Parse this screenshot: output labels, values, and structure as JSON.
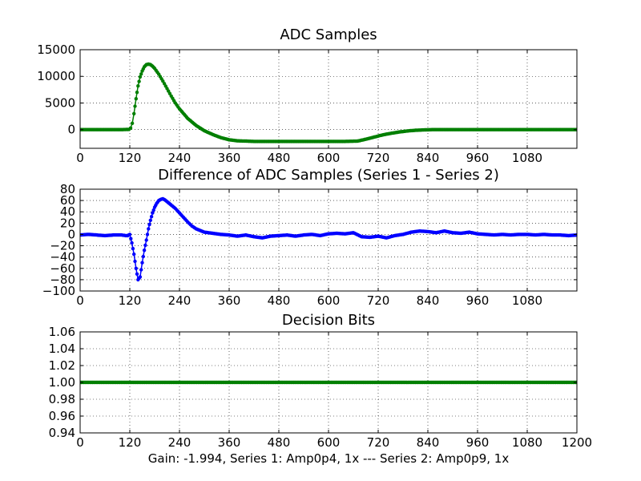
{
  "figure": {
    "caption": "Gain: -1.994, Series 1: Amp0p4, 1x --- Series 2: Amp0p9, 1x"
  },
  "chart_data": [
    {
      "type": "line",
      "title": "ADC Samples",
      "xlim": [
        0,
        1200
      ],
      "ylim": [
        -3500,
        15000
      ],
      "x_ticks": [
        0,
        120,
        240,
        360,
        480,
        600,
        720,
        840,
        960,
        1080
      ],
      "x_tick_labels": [
        "0",
        "120",
        "240",
        "360",
        "480",
        "600",
        "720",
        "840",
        "960",
        "1080"
      ],
      "y_ticks": [
        0,
        5000,
        10000,
        15000
      ],
      "y_tick_labels": [
        "0",
        "5000",
        "10000",
        "15000"
      ],
      "grid": true,
      "series": [
        {
          "name": "ADC samples",
          "color": "#007f00",
          "marker": "dot",
          "x": [
            0,
            100,
            118,
            122,
            126,
            130,
            135,
            140,
            145,
            150,
            155,
            160,
            165,
            170,
            175,
            180,
            190,
            200,
            210,
            220,
            230,
            240,
            260,
            280,
            300,
            320,
            340,
            360,
            380,
            420,
            480,
            560,
            640,
            670,
            690,
            710,
            730,
            750,
            770,
            790,
            810,
            830,
            850,
            900,
            1000,
            1100,
            1200
          ],
          "y": [
            0,
            0,
            50,
            300,
            1200,
            3000,
            5800,
            8200,
            9900,
            11000,
            11800,
            12200,
            12300,
            12200,
            11900,
            11500,
            10400,
            9100,
            7700,
            6300,
            5000,
            3900,
            2100,
            800,
            -200,
            -900,
            -1500,
            -1900,
            -2100,
            -2200,
            -2200,
            -2200,
            -2200,
            -2150,
            -1800,
            -1400,
            -1000,
            -700,
            -450,
            -250,
            -120,
            -50,
            0,
            0,
            0,
            0,
            0
          ]
        }
      ]
    },
    {
      "type": "line",
      "title": "Difference of ADC Samples (Series 1 - Series 2)",
      "xlim": [
        0,
        1200
      ],
      "ylim": [
        -100,
        80
      ],
      "x_ticks": [
        0,
        120,
        240,
        360,
        480,
        600,
        720,
        840,
        960,
        1080
      ],
      "x_tick_labels": [
        "0",
        "120",
        "240",
        "360",
        "480",
        "600",
        "720",
        "840",
        "960",
        "1080"
      ],
      "y_ticks": [
        -100,
        -80,
        -60,
        -40,
        -20,
        0,
        20,
        40,
        60,
        80
      ],
      "y_tick_labels": [
        "−100",
        "−80",
        "−60",
        "−40",
        "−20",
        "0",
        "20",
        "40",
        "60",
        "80"
      ],
      "grid": true,
      "series": [
        {
          "name": "Series 1 - Series 2",
          "color": "#0000ff",
          "marker": "dot",
          "x": [
            0,
            20,
            40,
            60,
            80,
            100,
            110,
            115,
            120,
            125,
            130,
            135,
            140,
            145,
            150,
            155,
            160,
            165,
            170,
            175,
            180,
            185,
            190,
            195,
            200,
            205,
            210,
            215,
            220,
            230,
            240,
            250,
            260,
            270,
            280,
            300,
            320,
            340,
            360,
            380,
            400,
            420,
            440,
            460,
            480,
            500,
            520,
            540,
            560,
            580,
            600,
            620,
            640,
            660,
            680,
            700,
            720,
            740,
            760,
            780,
            800,
            820,
            840,
            860,
            880,
            900,
            920,
            940,
            960,
            980,
            1000,
            1020,
            1040,
            1060,
            1080,
            1100,
            1120,
            1140,
            1160,
            1180,
            1200
          ],
          "y": [
            -1,
            0,
            -1,
            -2,
            -1,
            -1,
            -2,
            -2,
            0,
            -15,
            -35,
            -60,
            -80,
            -75,
            -50,
            -28,
            -10,
            10,
            25,
            38,
            48,
            55,
            60,
            62,
            63,
            61,
            58,
            55,
            52,
            46,
            38,
            30,
            22,
            15,
            10,
            4,
            2,
            0,
            -1,
            -3,
            -1,
            -4,
            -6,
            -3,
            -2,
            -1,
            -3,
            -1,
            0,
            -2,
            1,
            2,
            1,
            3,
            -4,
            -5,
            -3,
            -6,
            -2,
            0,
            4,
            6,
            5,
            3,
            6,
            3,
            2,
            4,
            1,
            0,
            -1,
            0,
            -1,
            0,
            0,
            -1,
            0,
            -1,
            -1,
            -2,
            -1
          ]
        }
      ]
    },
    {
      "type": "line",
      "title": "Decision Bits",
      "xlim": [
        0,
        1200
      ],
      "ylim": [
        0.94,
        1.06
      ],
      "x_ticks": [
        0,
        120,
        240,
        360,
        480,
        600,
        720,
        840,
        960,
        1080,
        1200
      ],
      "x_tick_labels": [
        "0",
        "120",
        "240",
        "360",
        "480",
        "600",
        "720",
        "840",
        "960",
        "1080",
        "1200"
      ],
      "y_ticks": [
        0.94,
        0.96,
        0.98,
        1.0,
        1.02,
        1.04,
        1.06
      ],
      "y_tick_labels": [
        "0.94",
        "0.96",
        "0.98",
        "1.00",
        "1.02",
        "1.04",
        "1.06"
      ],
      "grid": true,
      "series": [
        {
          "name": "Decision bits",
          "color": "#007f00",
          "marker": "dot",
          "x": [
            0,
            1200
          ],
          "y": [
            1.0,
            1.0
          ]
        }
      ]
    }
  ]
}
